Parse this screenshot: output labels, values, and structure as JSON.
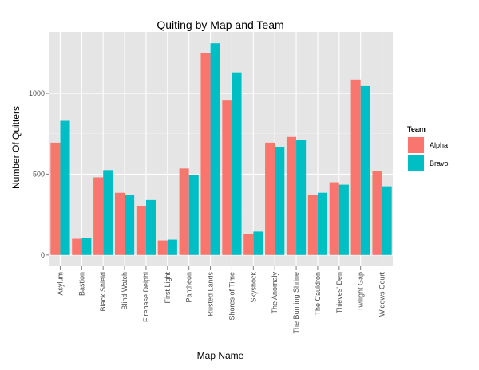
{
  "chart_data": {
    "type": "bar",
    "title": "Quiting by Map and Team",
    "xlabel": "Map Name",
    "ylabel": "Number Of Quitters",
    "categories": [
      "Asylum",
      "Bastion",
      "Black Shield",
      "Blind Watch",
      "Firebase Delphi",
      "First Light",
      "Pantheon",
      "Rusted Lands",
      "Shores of Time",
      "Skyshock",
      "The Anomaly",
      "The Burning Shrine",
      "The Cauldron",
      "Thieves' Den",
      "Twilight Gap",
      "Widows Court"
    ],
    "series": [
      {
        "name": "Alpha",
        "color": "#f8766d",
        "values": [
          695,
          100,
          480,
          385,
          305,
          90,
          535,
          1250,
          955,
          130,
          695,
          730,
          370,
          450,
          1085,
          520
        ]
      },
      {
        "name": "Bravo",
        "color": "#00bfc4",
        "values": [
          830,
          105,
          525,
          370,
          340,
          95,
          495,
          1310,
          1130,
          145,
          670,
          710,
          385,
          435,
          1045,
          425
        ]
      }
    ],
    "ylim": [
      -70,
      1380
    ],
    "yticks": [
      0,
      500,
      1000
    ],
    "grid": true,
    "legend": {
      "title": "Team",
      "position": "right"
    },
    "panel_color": "#e5e5e5",
    "grid_color": "#ffffff"
  }
}
